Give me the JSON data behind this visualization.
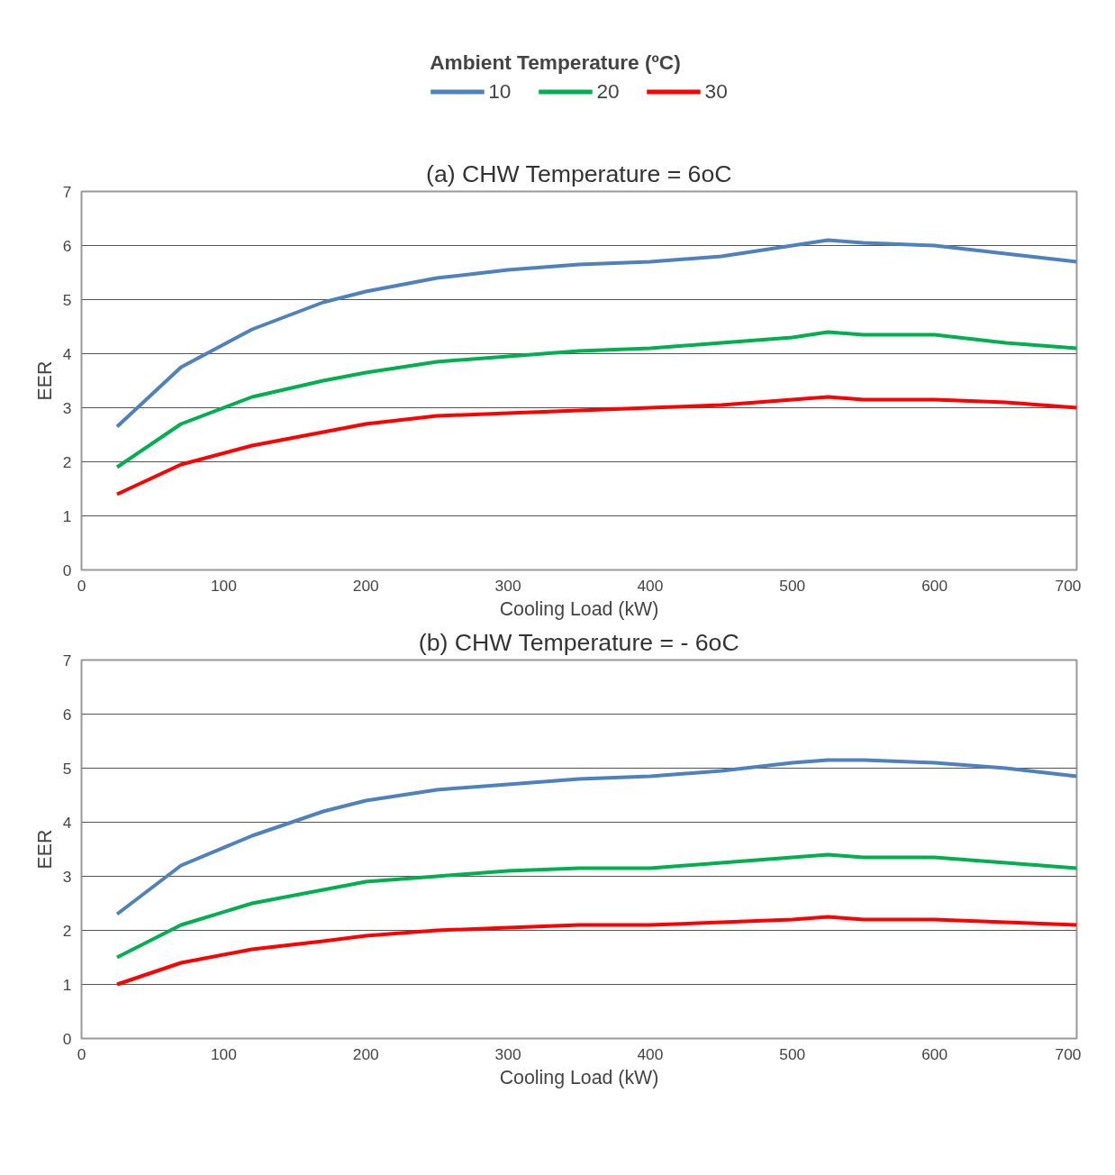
{
  "chart_data": [
    {
      "type": "line",
      "title": "(a) CHW Temperature = 6oC",
      "xlabel": "Cooling Load (kW)",
      "ylabel": "EER",
      "legend_title": "Ambient Temperature (ºC)",
      "legend": "top",
      "grid": "y",
      "line_style": "solid",
      "xlim": [
        0,
        700
      ],
      "xticks": [
        0,
        100,
        200,
        300,
        400,
        500,
        600,
        700
      ],
      "ylim": [
        0,
        7
      ],
      "yticks": [
        0,
        1,
        2,
        3,
        4,
        5,
        6,
        7
      ],
      "x": [
        25,
        70,
        120,
        170,
        200,
        250,
        300,
        350,
        400,
        450,
        500,
        525,
        550,
        600,
        650,
        700
      ],
      "series": [
        {
          "name": "10",
          "color": "#4f81bd",
          "values": [
            2.65,
            3.75,
            4.45,
            4.95,
            5.15,
            5.4,
            5.55,
            5.65,
            5.7,
            5.8,
            6.0,
            6.1,
            6.05,
            6.0,
            5.85,
            5.7
          ]
        },
        {
          "name": "20",
          "color": "#00b050",
          "values": [
            1.9,
            2.7,
            3.2,
            3.5,
            3.65,
            3.85,
            3.95,
            4.05,
            4.1,
            4.2,
            4.3,
            4.4,
            4.35,
            4.35,
            4.2,
            4.1
          ]
        },
        {
          "name": "30",
          "color": "#ff0000",
          "values": [
            1.4,
            1.95,
            2.3,
            2.55,
            2.7,
            2.85,
            2.9,
            2.95,
            3.0,
            3.05,
            3.15,
            3.2,
            3.15,
            3.15,
            3.1,
            3.0
          ]
        }
      ]
    },
    {
      "type": "line",
      "title": "(b) CHW Temperature = - 6oC",
      "xlabel": "Cooling Load (kW)",
      "ylabel": "EER",
      "grid": "y",
      "line_style": "solid",
      "xlim": [
        0,
        700
      ],
      "xticks": [
        0,
        100,
        200,
        300,
        400,
        500,
        600,
        700
      ],
      "ylim": [
        0,
        7
      ],
      "yticks": [
        0,
        1,
        2,
        3,
        4,
        5,
        6,
        7
      ],
      "x": [
        25,
        70,
        120,
        170,
        200,
        250,
        300,
        350,
        400,
        450,
        500,
        525,
        550,
        600,
        650,
        700
      ],
      "series": [
        {
          "color": "#4f81bd",
          "values": [
            2.3,
            3.2,
            3.75,
            4.2,
            4.4,
            4.6,
            4.7,
            4.8,
            4.85,
            4.95,
            5.1,
            5.15,
            5.15,
            5.1,
            5.0,
            4.85
          ]
        },
        {
          "color": "#00b050",
          "values": [
            1.5,
            2.1,
            2.5,
            2.75,
            2.9,
            3.0,
            3.1,
            3.15,
            3.15,
            3.25,
            3.35,
            3.4,
            3.35,
            3.35,
            3.25,
            3.15
          ]
        },
        {
          "color": "#ff0000",
          "values": [
            1.0,
            1.4,
            1.65,
            1.8,
            1.9,
            2.0,
            2.05,
            2.1,
            2.1,
            2.15,
            2.2,
            2.25,
            2.2,
            2.2,
            2.15,
            2.1
          ]
        }
      ]
    }
  ]
}
